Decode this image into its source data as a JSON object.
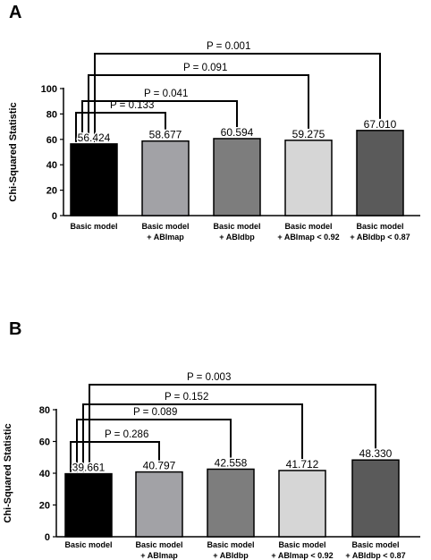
{
  "panels": [
    {
      "letter": "A",
      "chart_data": {
        "type": "bar",
        "ylabel": "Chi-Squared Statistic",
        "ylim": [
          0,
          100
        ],
        "yticks": [
          0,
          20,
          40,
          60,
          80,
          100
        ],
        "categories": [
          [
            "Basic model"
          ],
          [
            "Basic model",
            "+ ABImap"
          ],
          [
            "Basic model",
            "+ ABIdbp"
          ],
          [
            "Basic model",
            "+ ABImap < 0.92"
          ],
          [
            "Basic model",
            "+ ABIdbp < 0.87"
          ]
        ],
        "values": [
          56.424,
          58.677,
          60.594,
          59.275,
          67.01
        ],
        "value_labels": [
          "56.424",
          "58.677",
          "60.594",
          "59.275",
          "67.010"
        ],
        "colors": [
          "#000000",
          "#a2a2a6",
          "#7d7d7d",
          "#d6d6d6",
          "#5a5a5a"
        ],
        "comparisons": [
          {
            "from": 0,
            "to": 1,
            "label": "P = 0.133"
          },
          {
            "from": 0,
            "to": 2,
            "label": "P = 0.041"
          },
          {
            "from": 0,
            "to": 3,
            "label": "P = 0.091"
          },
          {
            "from": 0,
            "to": 4,
            "label": "P = 0.001"
          }
        ]
      }
    },
    {
      "letter": "B",
      "chart_data": {
        "type": "bar",
        "ylabel": "Chi-Squared Statistic",
        "ylim": [
          0,
          80
        ],
        "yticks": [
          0,
          20,
          40,
          60,
          80
        ],
        "categories": [
          [
            "Basic model"
          ],
          [
            "Basic model",
            "+ ABImap"
          ],
          [
            "Basic model",
            "+ ABIdbp"
          ],
          [
            "Basic model",
            "+ ABImap < 0.92"
          ],
          [
            "Basic model",
            "+ ABIdbp < 0.87"
          ]
        ],
        "values": [
          39.661,
          40.797,
          42.558,
          41.712,
          48.33
        ],
        "value_labels": [
          "39.661",
          "40.797",
          "42.558",
          "41.712",
          "48.330"
        ],
        "colors": [
          "#000000",
          "#a2a2a6",
          "#7d7d7d",
          "#d6d6d6",
          "#5a5a5a"
        ],
        "comparisons": [
          {
            "from": 0,
            "to": 1,
            "label": "P = 0.286"
          },
          {
            "from": 0,
            "to": 2,
            "label": "P = 0.089"
          },
          {
            "from": 0,
            "to": 3,
            "label": "P = 0.152"
          },
          {
            "from": 0,
            "to": 4,
            "label": "P = 0.003"
          }
        ]
      }
    }
  ]
}
